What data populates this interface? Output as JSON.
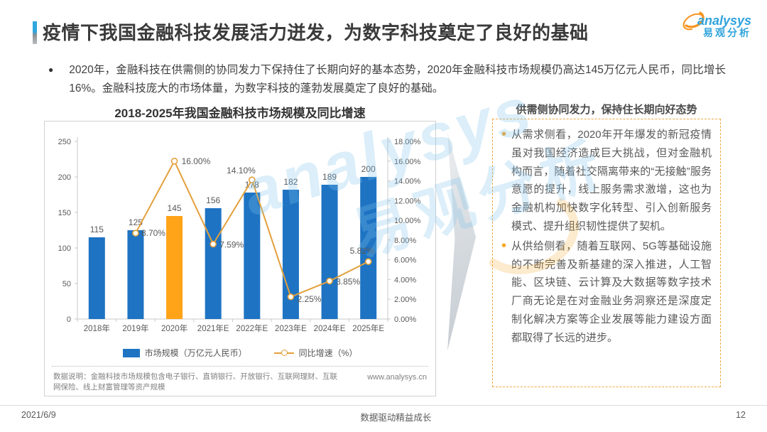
{
  "header": {
    "title": "疫情下我国金融科技发展活力迸发，为数字科技奠定了良好的基础",
    "logo": {
      "brand": "analysys",
      "brand_cn": "易观分析"
    }
  },
  "intro": {
    "bullet": "2020年，金融科技在供需侧的协同发力下保持住了长期向好的基本态势，2020年金融科技市场规模仍高达145万亿元人民币，同比增长16%。金融科技庞大的市场体量，为数字科技的蓬勃发展奠定了良好的基础。"
  },
  "chart": {
    "title": "2018-2025年我国金融科技市场规模及同比增速",
    "legend": [
      "市场规模（万亿元人民币）",
      "同比增速（%）"
    ],
    "note": "数据说明：金融科技市场规模包含电子银行、直销银行、开放银行、互联网理财、互联网保险、线上财富管理等资产规模",
    "website": "www.analysys.cn"
  },
  "chart_data": {
    "type": "bar",
    "subtype": "bar+line combo, dual axis",
    "title": "2018-2025年我国金融科技市场规模及同比增速",
    "categories": [
      "2018年",
      "2019年",
      "2020年",
      "2021年E",
      "2022年E",
      "2023年E",
      "2024年E",
      "2025年E"
    ],
    "series": [
      {
        "name": "市场规模（万亿元人民币）",
        "type": "bar",
        "axis": "left",
        "values": [
          115,
          125,
          145,
          156,
          178,
          182,
          189,
          200
        ],
        "highlight_index": 2
      },
      {
        "name": "同比增速（%）",
        "type": "line",
        "axis": "right",
        "values": [
          null,
          8.7,
          16.0,
          7.59,
          14.1,
          2.25,
          3.85,
          5.82
        ],
        "labels": [
          "",
          "8.70%",
          "16.00%",
          "7.59%",
          "14.10%",
          "2.25%",
          "3.85%",
          "5.82%"
        ]
      }
    ],
    "left_axis": {
      "min": 0,
      "max": 250,
      "step": 50
    },
    "right_axis": {
      "min": 0,
      "max": 18,
      "step": 2,
      "suffix": "%"
    },
    "legend_position": "bottom",
    "grid": false
  },
  "panel": {
    "heading": "供需侧协同发力，保持住长期向好态势",
    "bullets": [
      "从需求侧看，2020年开年爆发的新冠疫情虽对我国经济造成巨大挑战，但对金融机构而言，随着社交隔离带来的“无接触”服务意愿的提升，线上服务需求激增，这也为金融机构加快数字化转型、引入创新服务模式、提升组织韧性提供了契机。",
      "从供给侧看，随着互联网、5G等基础设施的不断完善及新基建的深入推进，人工智能、区块链、云计算及大数据等数字技术厂商无论是在对金融业务洞察还是深度定制化解决方案等企业发展等能力建设方面都取得了长远的进步。"
    ]
  },
  "footer": {
    "date": "2021/6/9",
    "center": "数据驱动精益成长",
    "page": "12"
  },
  "watermark": {
    "text_en": "analysys",
    "text_cn": "易观分析"
  },
  "colors": {
    "bar": "#1E73C3",
    "bar_highlight": "#FFA318",
    "line": "#E3A03C",
    "accent_blue": "#2EA7DF",
    "panel_border": "#F0A842",
    "logo_blue": "#2FA3DC",
    "logo_orange": "#F7941E",
    "axis_line": "#C9C9C9",
    "text_dark": "#3A3A3A",
    "text_body": "#595959"
  }
}
